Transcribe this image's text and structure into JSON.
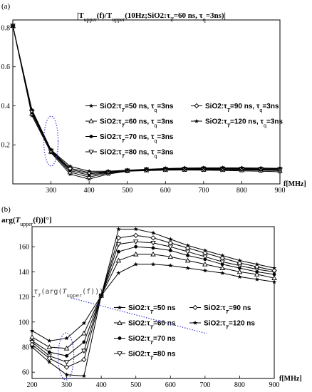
{
  "chart_data": [
    {
      "panel_label": "(a)",
      "type": "line",
      "title_parts": [
        "|T",
        "upper",
        "(f)/T",
        "upper",
        "(10Hz;SiO2:τ",
        "T",
        "=60 ns, τ",
        "q",
        "=3ns)|"
      ],
      "xlabel": "f[MHz]",
      "ylabel": "",
      "xlim": [
        200,
        900
      ],
      "ylim": [
        0,
        0.84
      ],
      "xticks": [
        300,
        400,
        500,
        600,
        700,
        800,
        900
      ],
      "yticks": [
        0.2,
        0.4,
        0.6,
        0.8
      ],
      "ytick_labels": [
        "0.2",
        "0.4",
        "0.6",
        "0.8"
      ],
      "x": [
        200,
        250,
        300,
        350,
        400,
        450,
        500,
        550,
        600,
        650,
        700,
        750,
        800,
        850,
        900
      ],
      "series": [
        {
          "legend_parts": [
            "SiO2:τ",
            "T",
            "=50 ns, τ",
            "q",
            "=3ns"
          ],
          "marker": "star",
          "values": [
            0.81,
            0.35,
            0.16,
            0.05,
            0.025,
            0.05,
            0.065,
            0.068,
            0.07,
            0.071,
            0.07,
            0.069,
            0.067,
            0.065,
            0.062
          ]
        },
        {
          "legend_parts": [
            "SiO2:τ",
            "T",
            "=60 ns, τ",
            "q",
            "=3ns"
          ],
          "marker": "triangle-up",
          "values": [
            0.81,
            0.36,
            0.165,
            0.06,
            0.035,
            0.055,
            0.066,
            0.07,
            0.072,
            0.073,
            0.073,
            0.072,
            0.071,
            0.07,
            0.068
          ]
        },
        {
          "legend_parts": [
            "SiO2:τ",
            "T",
            "=70 ns, τ",
            "q",
            "=3ns"
          ],
          "marker": "circle-filled",
          "values": [
            0.81,
            0.365,
            0.168,
            0.068,
            0.045,
            0.058,
            0.067,
            0.072,
            0.074,
            0.075,
            0.076,
            0.075,
            0.074,
            0.073,
            0.072
          ]
        },
        {
          "legend_parts": [
            "SiO2:τ",
            "T",
            "=80 ns, τ",
            "q",
            "=3ns"
          ],
          "marker": "triangle-down",
          "values": [
            0.81,
            0.37,
            0.17,
            0.075,
            0.052,
            0.06,
            0.068,
            0.073,
            0.076,
            0.077,
            0.078,
            0.078,
            0.077,
            0.076,
            0.075
          ]
        },
        {
          "legend_parts": [
            "SiO2:τ",
            "T",
            "=90 ns, τ",
            "q",
            "=3ns"
          ],
          "marker": "diamond",
          "values": [
            0.81,
            0.375,
            0.172,
            0.08,
            0.058,
            0.062,
            0.069,
            0.074,
            0.077,
            0.079,
            0.08,
            0.08,
            0.079,
            0.078,
            0.077
          ]
        },
        {
          "legend_parts": [
            "SiO2:τ",
            "T",
            "=120 ns, τ",
            "q",
            "=3ns"
          ],
          "marker": "star",
          "values": [
            0.81,
            0.38,
            0.175,
            0.09,
            0.065,
            0.065,
            0.07,
            0.075,
            0.079,
            0.081,
            0.082,
            0.082,
            0.082,
            0.081,
            0.08
          ]
        }
      ],
      "annotations": [
        {
          "kind": "dotted-ellipse",
          "x": 300,
          "y": 0.16
        }
      ]
    },
    {
      "panel_label": "(b)",
      "type": "line",
      "ylabel_parts": [
        "arg(",
        "T",
        "upper",
        "(f))[°]"
      ],
      "xlabel": "f[MHz]",
      "xlim": [
        200,
        900
      ],
      "ylim": [
        55,
        176
      ],
      "xticks": [
        200,
        300,
        400,
        500,
        600,
        700,
        800,
        900
      ],
      "yticks": [
        60,
        80,
        100,
        120,
        140,
        160
      ],
      "x": [
        200,
        250,
        300,
        350,
        400,
        450,
        500,
        550,
        600,
        650,
        700,
        750,
        800,
        850,
        900
      ],
      "series": [
        {
          "legend_parts": [
            "SiO2:τ",
            "T",
            "=50 ns"
          ],
          "marker": "star",
          "values": [
            93,
            85,
            87,
            99,
            121,
            139,
            146,
            146,
            145,
            143,
            141,
            139,
            136,
            134,
            132
          ]
        },
        {
          "legend_parts": [
            "SiO2:τ",
            "T",
            "=60 ns"
          ],
          "marker": "triangle-up",
          "values": [
            88,
            80,
            79,
            91,
            121,
            149,
            154,
            154,
            152,
            149,
            146,
            143,
            140,
            138,
            135
          ]
        },
        {
          "legend_parts": [
            "SiO2:τ",
            "T",
            "=70 ns"
          ],
          "marker": "circle-filled",
          "values": [
            85,
            76,
            73,
            84,
            121,
            156,
            160,
            159,
            157,
            153,
            150,
            146,
            143,
            140,
            138
          ]
        },
        {
          "legend_parts": [
            "SiO2:τ",
            "T",
            "=80 ns"
          ],
          "marker": "triangle-down",
          "values": [
            84,
            73,
            68,
            77,
            121,
            162,
            164,
            163,
            160,
            156,
            152,
            148,
            145,
            142,
            140
          ]
        },
        {
          "legend_parts": [
            "SiO2:τ",
            "T",
            "=90 ns"
          ],
          "marker": "diamond",
          "values": [
            82,
            71,
            64,
            70,
            121,
            167,
            169,
            167,
            163,
            159,
            155,
            151,
            147,
            144,
            141
          ]
        },
        {
          "legend_parts": [
            "SiO2:τ",
            "T",
            "=120 ns"
          ],
          "marker": "star",
          "values": [
            80,
            68,
            58,
            57,
            121,
            174,
            174,
            171,
            166,
            161,
            157,
            153,
            149,
            146,
            143
          ]
        }
      ],
      "annotations": [
        {
          "kind": "text",
          "text_parts": [
            "τ",
            "T",
            "(arg(",
            "T",
            "upper",
            "(f)))"
          ],
          "x": 205,
          "y": 113
        },
        {
          "kind": "dotted-ellipse",
          "x": 298,
          "y": 72
        }
      ]
    }
  ]
}
